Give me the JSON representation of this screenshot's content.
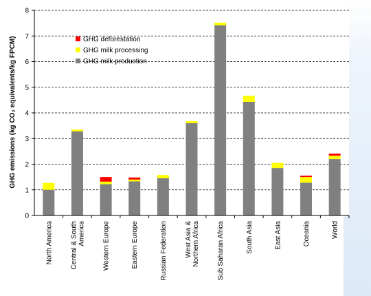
{
  "chart_data": {
    "type": "bar",
    "stacked": true,
    "ylabel": "GHG emissions (kg CO₂ equivalents/kg FPCM)",
    "ylim": [
      0,
      8
    ],
    "yticks": [
      "0",
      "1",
      "2",
      "3",
      "4",
      "5",
      "6",
      "7",
      "8"
    ],
    "grid": "dashed horizontal",
    "legend_position": "top-left",
    "categories": [
      "North America",
      "Central & South America",
      "Western Europe",
      "Eastern Europe",
      "Russian Federation",
      "West Asia & Northern Africa",
      "Sub Saharan Africa",
      "South Asia",
      "East Asia",
      "Oceania",
      "World"
    ],
    "series": [
      {
        "name": "GHG milk production",
        "color": "#808080",
        "values": [
          1.0,
          3.28,
          1.22,
          1.33,
          1.45,
          3.6,
          7.42,
          4.43,
          1.85,
          1.28,
          2.2
        ]
      },
      {
        "name": "GHG milk processing",
        "color": "#ffff00",
        "values": [
          0.27,
          0.07,
          0.1,
          0.07,
          0.13,
          0.08,
          0.1,
          0.24,
          0.2,
          0.22,
          0.13
        ]
      },
      {
        "name": "GHG deforestation",
        "color": "#ff0000",
        "values": [
          0.0,
          0.0,
          0.18,
          0.08,
          0.0,
          0.0,
          0.0,
          0.0,
          0.0,
          0.05,
          0.08
        ]
      }
    ],
    "legend_order": [
      "GHG deforestation",
      "GHG milk processing",
      "GHG milk production"
    ]
  }
}
